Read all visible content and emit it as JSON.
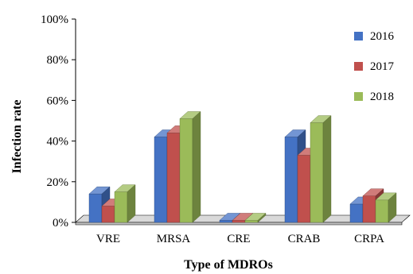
{
  "chart_data": {
    "type": "bar",
    "title": "",
    "xlabel": "Type of MDROs",
    "ylabel": "Infection rate",
    "categories": [
      "VRE",
      "MRSA",
      "CRE",
      "CRAB",
      "CRPA"
    ],
    "series": [
      {
        "name": "2016",
        "values": [
          14,
          42,
          1,
          42,
          9
        ],
        "color": "#4472C4"
      },
      {
        "name": "2017",
        "values": [
          8,
          44,
          1,
          33,
          13
        ],
        "color": "#C0504D"
      },
      {
        "name": "2018",
        "values": [
          15,
          51,
          1,
          49,
          11
        ],
        "color": "#9BBB59"
      }
    ],
    "ylim": [
      0,
      100
    ],
    "yticks": [
      "0%",
      "20%",
      "40%",
      "60%",
      "80%",
      "100%"
    ],
    "grid": false,
    "legend_position": "right",
    "style": "3d-clustered-column"
  }
}
